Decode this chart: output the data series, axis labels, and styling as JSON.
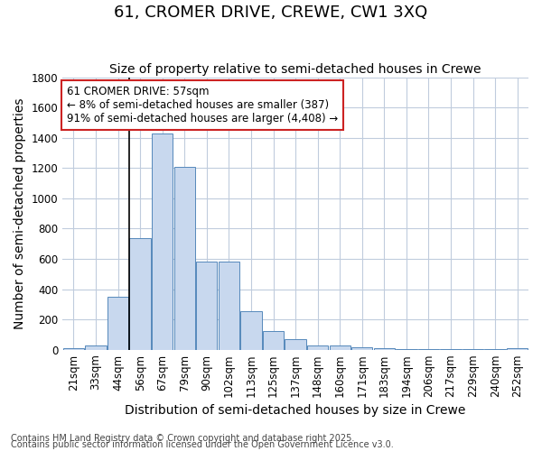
{
  "title": "61, CROMER DRIVE, CREWE, CW1 3XQ",
  "subtitle": "Size of property relative to semi-detached houses in Crewe",
  "xlabel": "Distribution of semi-detached houses by size in Crewe",
  "ylabel": "Number of semi-detached properties",
  "bin_labels": [
    "21sqm",
    "33sqm",
    "44sqm",
    "56sqm",
    "67sqm",
    "79sqm",
    "90sqm",
    "102sqm",
    "113sqm",
    "125sqm",
    "137sqm",
    "148sqm",
    "160sqm",
    "171sqm",
    "183sqm",
    "194sqm",
    "206sqm",
    "217sqm",
    "229sqm",
    "240sqm",
    "252sqm"
  ],
  "bar_heights": [
    10,
    30,
    350,
    740,
    1430,
    1210,
    580,
    580,
    255,
    125,
    68,
    30,
    25,
    18,
    12,
    5,
    4,
    4,
    2,
    4,
    8
  ],
  "bar_color": "#c8d8ee",
  "bar_edge_color": "#5588bb",
  "background_color": "#ffffff",
  "grid_color": "#c0ccdd",
  "ylim": [
    0,
    1800
  ],
  "property_line_x": 2.5,
  "annotation_text": "61 CROMER DRIVE: 57sqm\n← 8% of semi-detached houses are smaller (387)\n91% of semi-detached houses are larger (4,408) →",
  "annotation_box_color": "#ffffff",
  "annotation_box_edge_color": "#cc2222",
  "footnote1": "Contains HM Land Registry data © Crown copyright and database right 2025.",
  "footnote2": "Contains public sector information licensed under the Open Government Licence v3.0.",
  "title_fontsize": 13,
  "subtitle_fontsize": 10,
  "axis_label_fontsize": 10,
  "tick_fontsize": 8.5,
  "annotation_fontsize": 8.5,
  "footnote_fontsize": 7
}
